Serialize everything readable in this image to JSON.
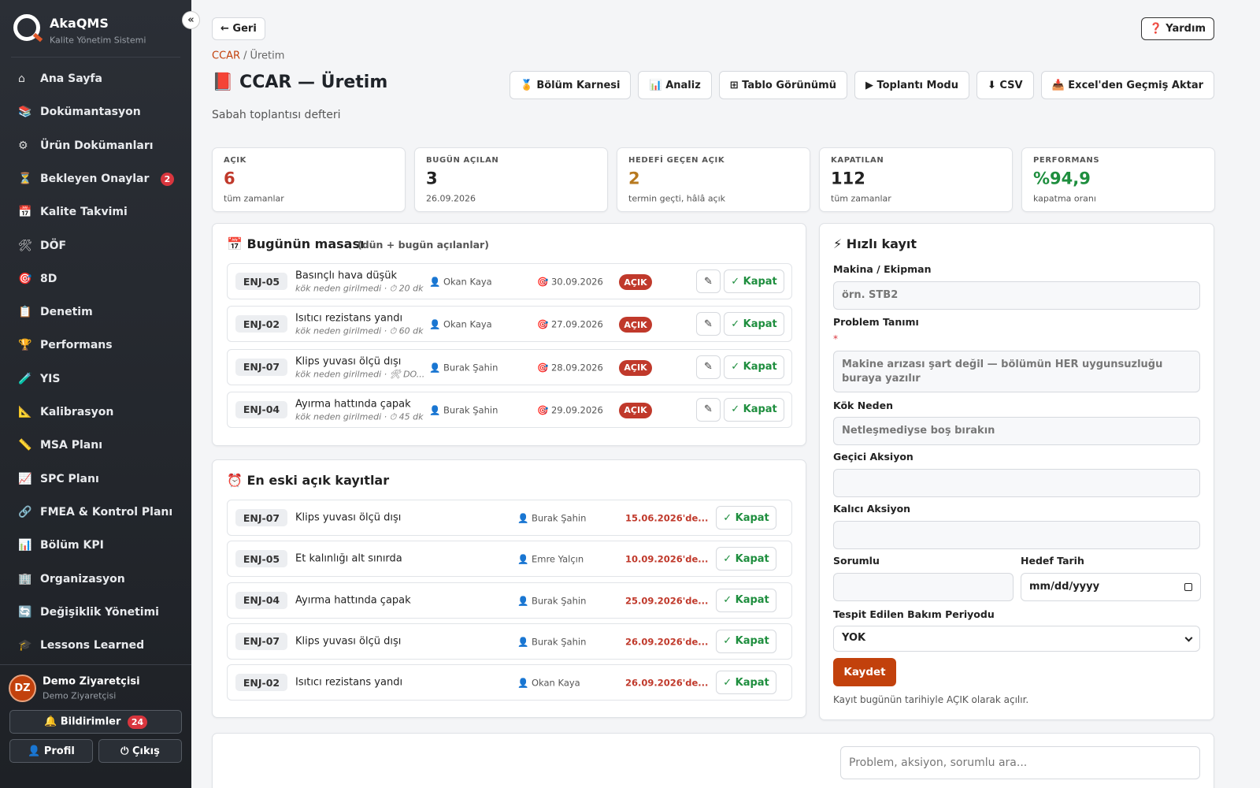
{
  "sidebar": {
    "brand": "AkaQMS",
    "tagline": "Kalite Yönetim Sistemi",
    "collapse": "«",
    "nav": [
      {
        "icon": "⌂",
        "label": "Ana Sayfa"
      },
      {
        "icon": "📚",
        "label": "Dokümantasyon"
      },
      {
        "icon": "⚙",
        "label": "Ürün Dokümanları"
      },
      {
        "icon": "⏳",
        "label": "Bekleyen Onaylar",
        "badge": 2
      },
      {
        "icon": "📅",
        "label": "Kalite Takvimi"
      },
      {
        "icon": "🛠",
        "label": "DÖF"
      },
      {
        "icon": "🎯",
        "label": "8D"
      },
      {
        "icon": "📋",
        "label": "Denetim"
      },
      {
        "icon": "🏆",
        "label": "Performans"
      },
      {
        "icon": "🧪",
        "label": "YIS"
      },
      {
        "icon": "📐",
        "label": "Kalibrasyon"
      },
      {
        "icon": "📏",
        "label": "MSA Planı"
      },
      {
        "icon": "📈",
        "label": "SPC Planı"
      },
      {
        "icon": "🔗",
        "label": "FMEA & Kontrol Planı"
      },
      {
        "icon": "📊",
        "label": "Bölüm KPI"
      },
      {
        "icon": "🏢",
        "label": "Organizasyon"
      },
      {
        "icon": "🔄",
        "label": "Değişiklik Yönetimi"
      },
      {
        "icon": "🎓",
        "label": "Lessons Learned"
      }
    ],
    "user": {
      "initials": "DZ",
      "name": "Demo Ziyaretçisi",
      "role": "Demo Ziyaretçisi"
    },
    "notifications": {
      "label": "🔔 Bildirimler",
      "count": 24
    },
    "profile": "👤 Profil",
    "logout": "⏻ Çıkış"
  },
  "header": {
    "back": "← Geri",
    "help": "❓ Yardım",
    "breadcrumb": {
      "parent": "CCAR",
      "separator": "/",
      "current": "Üretim"
    },
    "title": "📕 CCAR — Üretim",
    "subtitle": "Sabah toplantısı defteri",
    "buttons": [
      "🏅 Bölüm Karnesi",
      "📊 Analiz",
      "⊞ Tablo Görünümü",
      "▶ Toplantı Modu",
      "⬇ CSV",
      "📥 Excel'den Geçmiş Aktar"
    ]
  },
  "stats": [
    {
      "label": "AÇIK",
      "value": 6,
      "note": "tüm zamanlar"
    },
    {
      "label": "BUGÜN AÇILAN",
      "value": 3,
      "note": "26.09.2026"
    },
    {
      "label": "HEDEFİ GEÇEN AÇIK",
      "value": 2,
      "note": "termin geçti, hâlâ açık"
    },
    {
      "label": "KAPATILAN",
      "value": 112,
      "note": "tüm zamanlar"
    },
    {
      "label": "PERFORMANS",
      "value": "%94,9",
      "note": "kapatma oranı"
    }
  ],
  "row_actions": {
    "close": "✓ Kapat",
    "edit": "✎"
  },
  "today": {
    "title": "📅 Bugünün masası",
    "hint": "(dün + bugün açılanlar)",
    "rows": [
      {
        "code": "ENJ-05",
        "title": "Basınçlı hava düşük",
        "meta": "kök neden girilmedi · ⏱ 20 dk",
        "person": "👤 Okan Kaya",
        "date": "🎯 30.09.2026",
        "status": "AÇIK"
      },
      {
        "code": "ENJ-02",
        "title": "Isıtıcı rezistans yandı",
        "meta": "kök neden girilmedi · ⏱ 60 dk",
        "person": "👤 Okan Kaya",
        "date": "🎯 27.09.2026",
        "status": "AÇIK"
      },
      {
        "code": "ENJ-07",
        "title": "Klips yuvası ölçü dışı",
        "meta": "kök neden girilmedi · 🛠 DO...",
        "person": "👤 Burak Şahin",
        "date": "🎯 28.09.2026",
        "status": "AÇIK"
      },
      {
        "code": "ENJ-04",
        "title": "Ayırma hattında çapak",
        "meta": "kök neden girilmedi · ⏱ 45 dk",
        "person": "👤 Burak Şahin",
        "date": "🎯 29.09.2026",
        "status": "AÇIK"
      }
    ]
  },
  "oldest": {
    "title": "⏰ En eski açık kayıtlar",
    "rows": [
      {
        "code": "ENJ-07",
        "title": "Klips yuvası ölçü dışı",
        "person": "👤 Burak Şahin",
        "since": "15.06.2026'de..."
      },
      {
        "code": "ENJ-05",
        "title": "Et kalınlığı alt sınırda",
        "person": "👤 Emre Yalçın",
        "since": "10.09.2026'de..."
      },
      {
        "code": "ENJ-04",
        "title": "Ayırma hattında çapak",
        "person": "👤 Burak Şahin",
        "since": "25.09.2026'de..."
      },
      {
        "code": "ENJ-07",
        "title": "Klips yuvası ölçü dışı",
        "person": "👤 Burak Şahin",
        "since": "26.09.2026'de..."
      },
      {
        "code": "ENJ-02",
        "title": "Isıtıcı rezistans yandı",
        "person": "👤 Okan Kaya",
        "since": "26.09.2026'de..."
      }
    ]
  },
  "quick_form": {
    "title": "⚡ Hızlı kayıt",
    "fields": [
      {
        "label": "Makina / Ekipman",
        "placeholder": "örn. STB2"
      },
      {
        "label": "Problem Tanımı",
        "required": "*",
        "placeholder": "Makine arızası şart değil — bölümün HER uygunsuzluğu buraya yazılır"
      },
      {
        "label": "Kök Neden",
        "placeholder": "Netleşmediyse boş bırakın"
      },
      {
        "label": "Geçici Aksiyon"
      },
      {
        "label": "Kalıcı Aksiyon"
      },
      {
        "label": "Sorumlu"
      },
      {
        "label": "Hedef Tarih",
        "placeholder": "mm/dd/yyyy"
      },
      {
        "label": "Tespit Edilen Bakım Periyodu",
        "placeholder": "YOK"
      }
    ],
    "submit": "Kaydet",
    "note": "Kayıt bugünün tarihiyle AÇIK olarak açılır."
  },
  "search": {
    "placeholder": "Problem, aksiyon, sorumlu ara..."
  }
}
